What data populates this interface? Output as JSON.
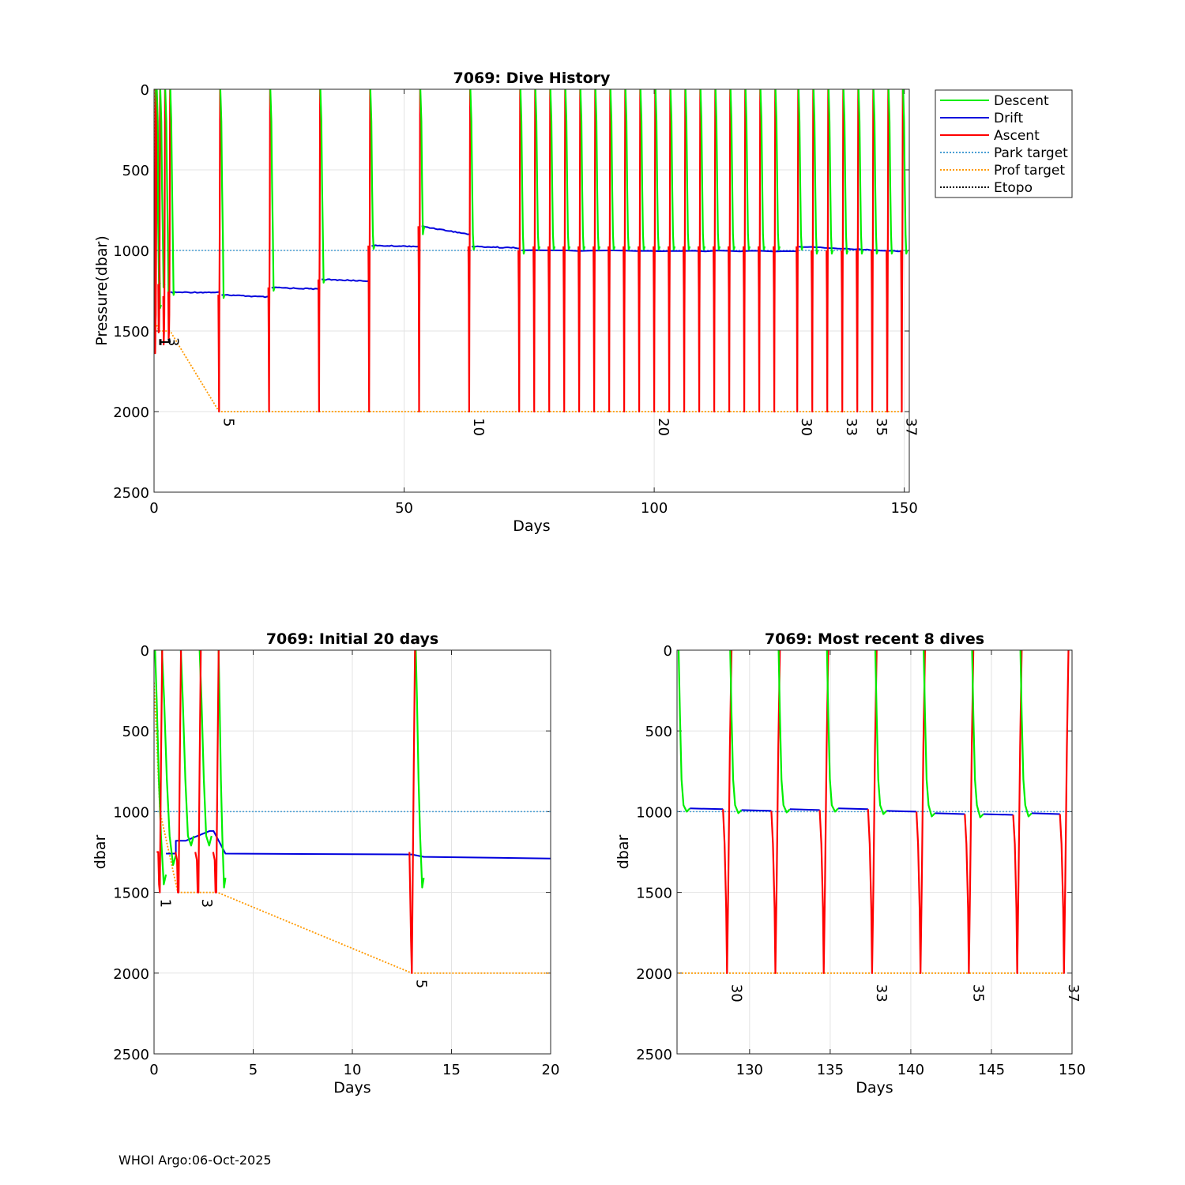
{
  "footer": "WHOI Argo:06-Oct-2025",
  "legend": [
    {
      "label": "Descent",
      "color": "#00ee00",
      "style": "solid"
    },
    {
      "label": "Drift",
      "color": "#0000dd",
      "style": "solid"
    },
    {
      "label": "Ascent",
      "color": "#ff0000",
      "style": "solid"
    },
    {
      "label": "Park target",
      "color": "#4a9fd4",
      "style": "dotted"
    },
    {
      "label": "Prof target",
      "color": "#ff9900",
      "style": "dotted"
    },
    {
      "label": "Etopo",
      "color": "#000000",
      "style": "dotted"
    }
  ],
  "chart_data": [
    {
      "type": "line",
      "title": "7069: Dive History",
      "xlabel": "Days",
      "ylabel": "Pressure(dbar)",
      "xlim": [
        0,
        151
      ],
      "ylim": [
        0,
        2500
      ],
      "y_reversed": true,
      "xticks": [
        0,
        50,
        100,
        150
      ],
      "yticks": [
        0,
        500,
        1000,
        1500,
        2000,
        2500
      ],
      "park_target": 1000,
      "cycles": [
        {
          "t": 0.1,
          "depth": 1450,
          "label": "1"
        },
        {
          "t": 0.3,
          "depth": 1450,
          "label": "1"
        },
        {
          "t": 1.0,
          "depth": 1500,
          "label": ""
        },
        {
          "t": 2.0,
          "depth": 1500,
          "label": "3"
        },
        {
          "t": 3.0,
          "depth": 1500,
          "label": ""
        },
        {
          "t": 13.0,
          "depth": 2000,
          "label": "5"
        },
        {
          "t": 23.0,
          "depth": 2000,
          "label": ""
        },
        {
          "t": 33.0,
          "depth": 2000,
          "label": ""
        },
        {
          "t": 43.0,
          "depth": 2000,
          "label": ""
        },
        {
          "t": 53.0,
          "depth": 2000,
          "label": ""
        },
        {
          "t": 63.0,
          "depth": 2000,
          "label": "10"
        },
        {
          "t": 73.0,
          "depth": 2000,
          "label": ""
        },
        {
          "t": 76.0,
          "depth": 2000,
          "label": ""
        },
        {
          "t": 79.0,
          "depth": 2000,
          "label": ""
        },
        {
          "t": 82.0,
          "depth": 2000,
          "label": ""
        },
        {
          "t": 85.0,
          "depth": 2000,
          "label": ""
        },
        {
          "t": 88.0,
          "depth": 2000,
          "label": ""
        },
        {
          "t": 91.0,
          "depth": 2000,
          "label": ""
        },
        {
          "t": 94.0,
          "depth": 2000,
          "label": ""
        },
        {
          "t": 97.0,
          "depth": 2000,
          "label": ""
        },
        {
          "t": 100.0,
          "depth": 2000,
          "label": "20"
        },
        {
          "t": 103.0,
          "depth": 2000,
          "label": ""
        },
        {
          "t": 106.0,
          "depth": 2000,
          "label": ""
        },
        {
          "t": 109.0,
          "depth": 2000,
          "label": ""
        },
        {
          "t": 112.0,
          "depth": 2000,
          "label": ""
        },
        {
          "t": 115.0,
          "depth": 2000,
          "label": ""
        },
        {
          "t": 118.0,
          "depth": 2000,
          "label": ""
        },
        {
          "t": 121.0,
          "depth": 2000,
          "label": ""
        },
        {
          "t": 124.0,
          "depth": 2000,
          "label": ""
        },
        {
          "t": 128.6,
          "depth": 2000,
          "label": "30"
        },
        {
          "t": 131.6,
          "depth": 2000,
          "label": ""
        },
        {
          "t": 134.6,
          "depth": 2000,
          "label": ""
        },
        {
          "t": 137.6,
          "depth": 2000,
          "label": "33"
        },
        {
          "t": 140.6,
          "depth": 2000,
          "label": ""
        },
        {
          "t": 143.6,
          "depth": 2000,
          "label": "35"
        },
        {
          "t": 146.6,
          "depth": 2000,
          "label": ""
        },
        {
          "t": 149.5,
          "depth": 2000,
          "label": "37"
        }
      ],
      "drift_segments": [
        {
          "t0": 3.3,
          "t1": 13.0,
          "p0": 1260,
          "p1": 1260
        },
        {
          "t0": 13.5,
          "t1": 23.0,
          "p0": 1275,
          "p1": 1290
        },
        {
          "t0": 23.5,
          "t1": 33.0,
          "p0": 1230,
          "p1": 1240
        },
        {
          "t0": 33.5,
          "t1": 43.0,
          "p0": 1180,
          "p1": 1190
        },
        {
          "t0": 43.5,
          "t1": 53.0,
          "p0": 970,
          "p1": 975
        },
        {
          "t0": 53.5,
          "t1": 63.0,
          "p0": 850,
          "p1": 900
        },
        {
          "t0": 63.5,
          "t1": 73.0,
          "p0": 975,
          "p1": 985
        },
        {
          "t0": 73.5,
          "t1": 128.6,
          "p0": 1000,
          "p1": 1005
        },
        {
          "t0": 128.9,
          "t1": 149.5,
          "p0": 975,
          "p1": 1005
        }
      ],
      "prof_target": [
        [
          0,
          0
        ],
        [
          0.15,
          1450
        ],
        [
          0.35,
          1450
        ],
        [
          1.0,
          1500
        ],
        [
          3.2,
          1500
        ],
        [
          13.0,
          2000
        ],
        [
          149.5,
          2000
        ]
      ]
    },
    {
      "type": "line",
      "title": "7069: Initial 20 days",
      "xlabel": "Days",
      "ylabel": "dbar",
      "xlim": [
        0,
        20
      ],
      "ylim": [
        0,
        2500
      ],
      "y_reversed": true,
      "xticks": [
        0,
        5,
        10,
        15,
        20
      ],
      "yticks": [
        0,
        500,
        1000,
        1500,
        2000,
        2500
      ],
      "park_target": 1000,
      "descents": [
        {
          "t0": 0.05,
          "t1": 0.6,
          "bottom": 1450
        },
        {
          "t0": 0.4,
          "t1": 1.1,
          "bottom": 1330
        },
        {
          "t0": 1.35,
          "t1": 2.0,
          "bottom": 1210
        },
        {
          "t0": 2.3,
          "t1": 2.9,
          "bottom": 1210
        },
        {
          "t0": 3.25,
          "t1": 3.6,
          "bottom": 1470
        },
        {
          "t0": 13.2,
          "t1": 13.6,
          "bottom": 1470
        }
      ],
      "ascents": [
        {
          "t": 0.25,
          "depth": 1450
        },
        {
          "t": 1.2,
          "depth": 1500
        },
        {
          "t": 2.2,
          "depth": 1500
        },
        {
          "t": 3.1,
          "depth": 1500
        },
        {
          "t": 13.0,
          "depth": 2000
        }
      ],
      "drift": [
        [
          0.6,
          1260
        ],
        [
          1.1,
          1260
        ],
        [
          1.1,
          1180
        ],
        [
          1.6,
          1180
        ],
        [
          2.8,
          1120
        ],
        [
          3.0,
          1120
        ],
        [
          3.6,
          1260
        ],
        [
          13.0,
          1265
        ],
        [
          13.6,
          1280
        ],
        [
          20.0,
          1290
        ]
      ],
      "prof_target": [
        [
          0,
          200
        ],
        [
          0.3,
          1000
        ],
        [
          1.2,
          1500
        ],
        [
          3.2,
          1500
        ],
        [
          13.0,
          2000
        ],
        [
          20,
          2000
        ]
      ],
      "cycle_labels": [
        {
          "t": 0.1,
          "label": "1"
        },
        {
          "t": 2.2,
          "label": "3"
        },
        {
          "t": 13.0,
          "label": "5"
        }
      ]
    },
    {
      "type": "line",
      "title": "7069: Most recent 8 dives",
      "xlabel": "Days",
      "ylabel": "dbar",
      "xlim": [
        125.5,
        150
      ],
      "ylim": [
        0,
        2500
      ],
      "y_reversed": true,
      "xticks": [
        130,
        135,
        140,
        145,
        150
      ],
      "yticks": [
        0,
        500,
        1000,
        1500,
        2000,
        2500
      ],
      "park_target": 1000,
      "dives": [
        {
          "descent_start": 125.6,
          "ascent": 128.6,
          "drift": 980,
          "label": "30"
        },
        {
          "descent_start": 128.8,
          "ascent": 131.6,
          "drift": 990,
          "label": ""
        },
        {
          "descent_start": 131.8,
          "ascent": 134.6,
          "drift": 985,
          "label": ""
        },
        {
          "descent_start": 134.8,
          "ascent": 137.6,
          "drift": 980,
          "label": "33"
        },
        {
          "descent_start": 137.8,
          "ascent": 140.6,
          "drift": 995,
          "label": ""
        },
        {
          "descent_start": 140.8,
          "ascent": 143.6,
          "drift": 1010,
          "label": "35"
        },
        {
          "descent_start": 143.8,
          "ascent": 146.6,
          "drift": 1015,
          "label": ""
        },
        {
          "descent_start": 146.8,
          "ascent": 149.5,
          "drift": 1010,
          "label": "37"
        }
      ],
      "prof_target": 2000
    }
  ]
}
